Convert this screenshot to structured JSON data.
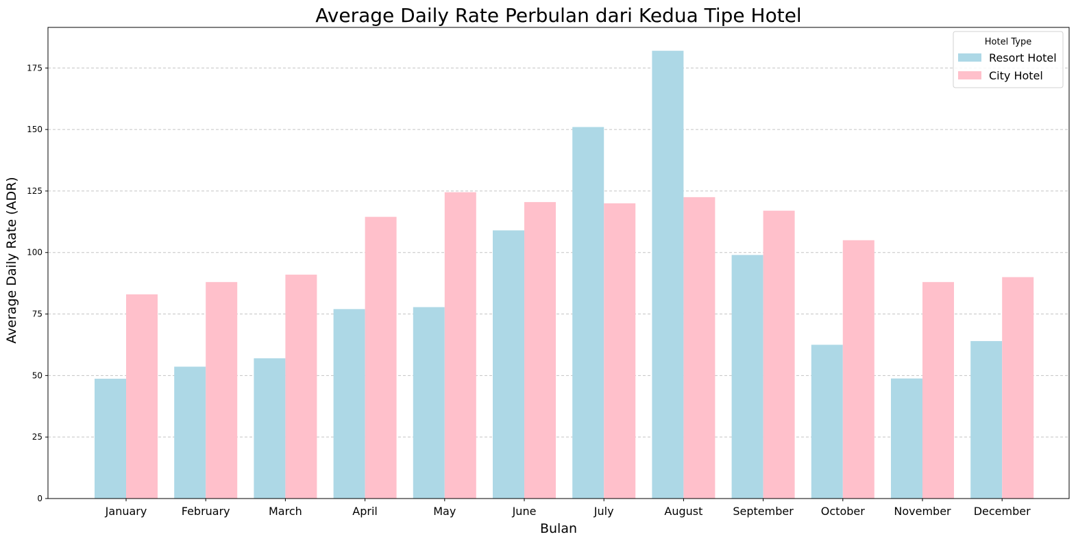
{
  "chart_data": {
    "type": "bar",
    "title": "Average Daily Rate Perbulan dari Kedua Tipe Hotel",
    "xlabel": "Bulan",
    "ylabel": "Average Daily Rate (ADR)",
    "categories": [
      "January",
      "February",
      "March",
      "April",
      "May",
      "June",
      "July",
      "August",
      "September",
      "October",
      "November",
      "December"
    ],
    "series": [
      {
        "name": "Resort Hotel",
        "color": "#add8e6",
        "values": [
          48.7,
          53.6,
          57.0,
          77.0,
          77.8,
          109.0,
          151.0,
          182.0,
          99.0,
          62.5,
          48.8,
          64.0
        ]
      },
      {
        "name": "City Hotel",
        "color": "#ffc0cb",
        "values": [
          83.0,
          88.0,
          91.0,
          114.5,
          124.5,
          120.5,
          120.0,
          122.5,
          117.0,
          105.0,
          88.0,
          90.0
        ]
      }
    ],
    "ylim": [
      0,
      191.5
    ],
    "yticks": [
      0,
      25,
      50,
      75,
      100,
      125,
      150,
      175
    ],
    "grid": "y-dashed",
    "legend": {
      "title": "Hotel Type",
      "placement": "top-right"
    }
  }
}
